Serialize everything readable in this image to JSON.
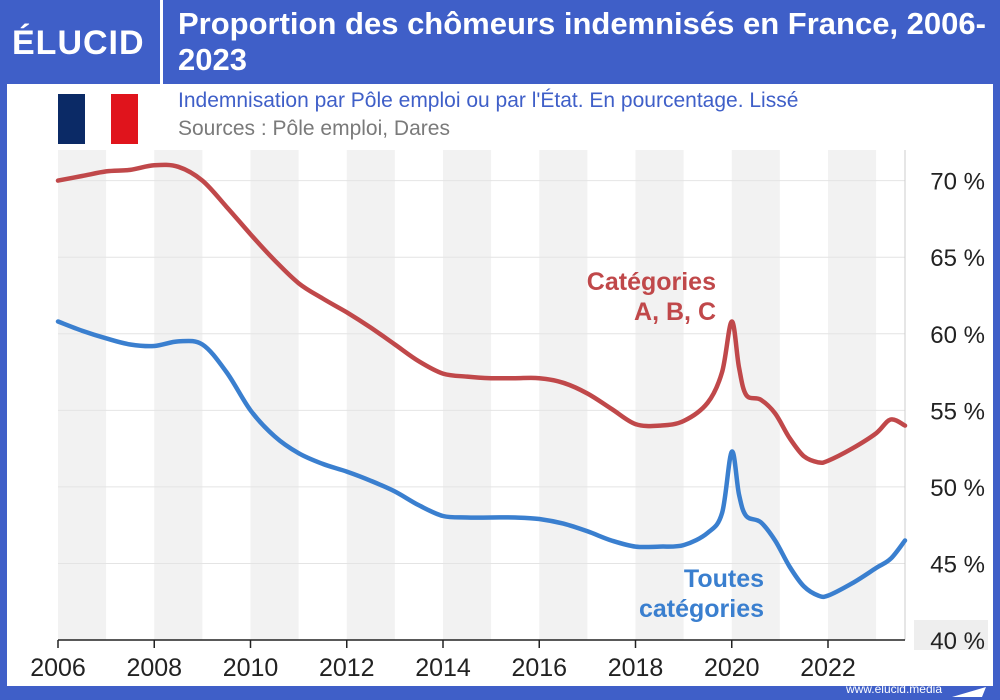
{
  "header": {
    "logo": "ÉLUCID",
    "title": "Proportion des chômeurs indemnisés en France, 2006-2023"
  },
  "subtitle": "Indemnisation par Pôle emploi ou par l'État. En pourcentage. Lissé",
  "sources": "Sources : Pôle emploi, Dares",
  "footer": {
    "url": "www.elucid.media"
  },
  "flag": {
    "colors": [
      "#0b2a66",
      "#ffffff",
      "#e0141c"
    ]
  },
  "chart_data": {
    "type": "line",
    "title": "Proportion des chômeurs indemnisés en France, 2006-2023",
    "xlabel": "",
    "ylabel": "",
    "xlim": [
      2006,
      2023.6
    ],
    "ylim": [
      40,
      72
    ],
    "x_ticks": [
      2006,
      2008,
      2010,
      2012,
      2014,
      2016,
      2018,
      2020,
      2022
    ],
    "x_tick_labels": [
      "2006",
      "2008",
      "2010",
      "2012",
      "2014",
      "2016",
      "2018",
      "2020",
      "2022"
    ],
    "y_ticks": [
      40,
      45,
      50,
      55,
      60,
      65,
      70
    ],
    "y_tick_labels": [
      "40 %",
      "45 %",
      "50 %",
      "55 %",
      "60 %",
      "65 %",
      "70 %"
    ],
    "y_axis_side": "right",
    "grid": true,
    "alternating_year_bands": true,
    "series": [
      {
        "name": "Catégories A, B, C",
        "color": "#c0484a",
        "label_lines": [
          "Catégories",
          "A, B, C"
        ],
        "x": [
          2006,
          2006.5,
          2007,
          2007.5,
          2008,
          2008.5,
          2009,
          2009.5,
          2010,
          2010.5,
          2011,
          2011.5,
          2012,
          2012.5,
          2013,
          2013.5,
          2014,
          2014.5,
          2015,
          2015.5,
          2016,
          2016.5,
          2017,
          2017.5,
          2018,
          2018.5,
          2019,
          2019.5,
          2019.8,
          2020,
          2020.15,
          2020.3,
          2020.6,
          2020.9,
          2021.2,
          2021.5,
          2021.8,
          2022,
          2022.5,
          2023,
          2023.3,
          2023.6
        ],
        "y": [
          70.0,
          70.3,
          70.6,
          70.7,
          71.0,
          70.9,
          70.0,
          68.3,
          66.5,
          64.8,
          63.3,
          62.3,
          61.4,
          60.4,
          59.3,
          58.2,
          57.4,
          57.2,
          57.1,
          57.1,
          57.1,
          56.8,
          56.1,
          55.1,
          54.1,
          54.0,
          54.3,
          55.5,
          57.5,
          60.8,
          57.8,
          56.0,
          55.7,
          54.8,
          53.2,
          52.0,
          51.6,
          51.7,
          52.5,
          53.5,
          54.4,
          54.0
        ]
      },
      {
        "name": "Toutes catégories",
        "color": "#3a7fcf",
        "label_lines": [
          "Toutes",
          "catégories"
        ],
        "x": [
          2006,
          2006.5,
          2007,
          2007.5,
          2008,
          2008.5,
          2009,
          2009.5,
          2010,
          2010.5,
          2011,
          2011.5,
          2012,
          2012.5,
          2013,
          2013.5,
          2014,
          2014.5,
          2015,
          2015.5,
          2016,
          2016.5,
          2017,
          2017.5,
          2018,
          2018.5,
          2019,
          2019.5,
          2019.8,
          2020,
          2020.15,
          2020.3,
          2020.6,
          2020.9,
          2021.2,
          2021.5,
          2021.8,
          2022,
          2022.5,
          2023,
          2023.3,
          2023.6
        ],
        "y": [
          60.8,
          60.2,
          59.7,
          59.3,
          59.2,
          59.5,
          59.3,
          57.5,
          55.0,
          53.3,
          52.2,
          51.5,
          51.0,
          50.4,
          49.7,
          48.8,
          48.1,
          48.0,
          48.0,
          48.0,
          47.9,
          47.6,
          47.1,
          46.5,
          46.1,
          46.1,
          46.2,
          47.0,
          48.3,
          52.3,
          49.5,
          48.1,
          47.7,
          46.5,
          44.8,
          43.5,
          42.9,
          42.9,
          43.7,
          44.7,
          45.3,
          46.5
        ]
      }
    ]
  }
}
